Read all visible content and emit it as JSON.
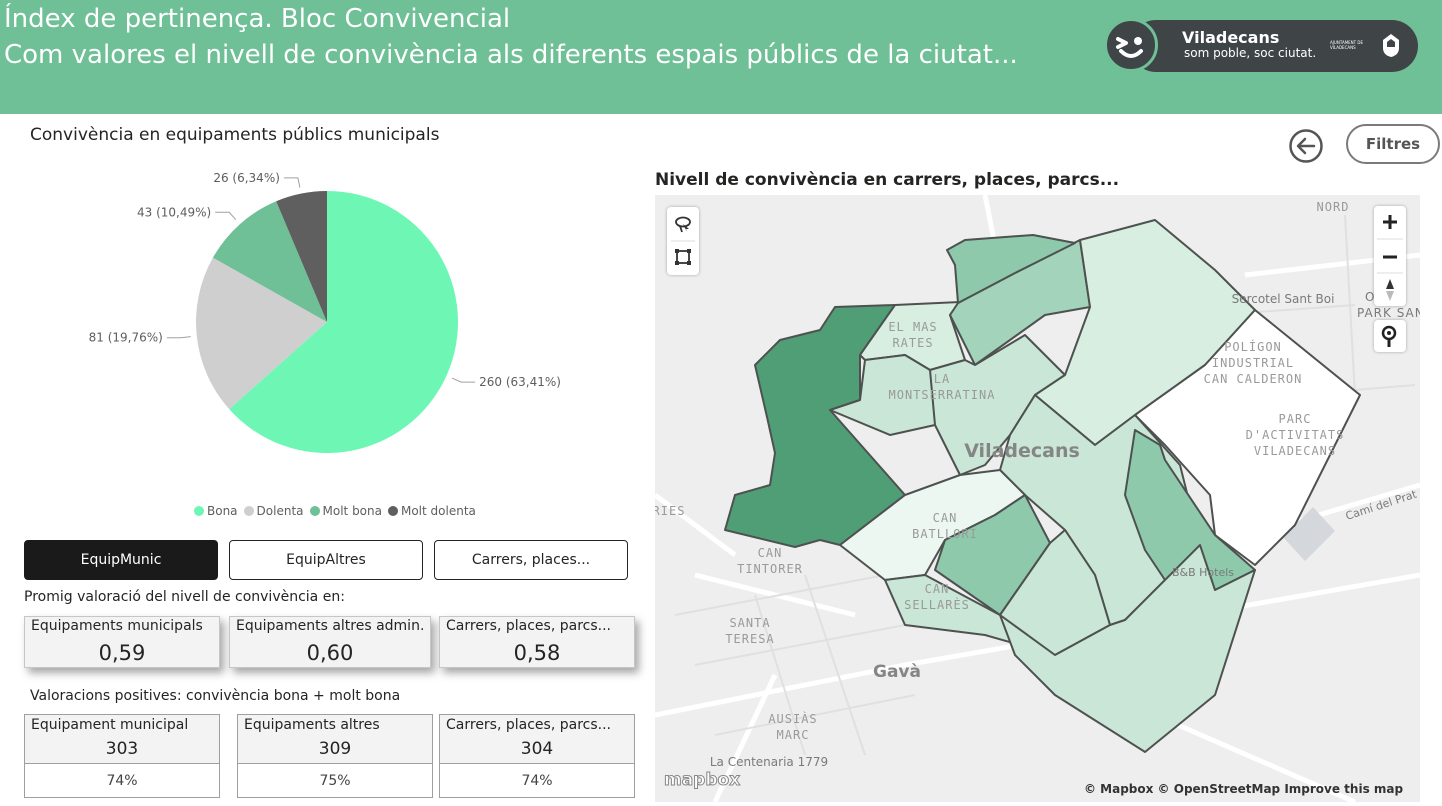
{
  "header": {
    "title": "Índex de pertinença. Bloc Convivencial",
    "subtitle": "Com valores el nivell de convivència als diferents espais públics de la ciutat...",
    "logo_brand": "Viladecans",
    "logo_tagline": "som poble, soc ciutat.",
    "logo_ajuntament": "AJUNTAMENT DE VILADECANS",
    "bg_color": "#6fbf97"
  },
  "pie_section": {
    "title": "Convivència en equipaments públics municipals"
  },
  "chart_data": {
    "type": "pie",
    "series": [
      {
        "name": "Bona",
        "value": 260,
        "label": "260 (63,41%)",
        "color": "#6ef7b4"
      },
      {
        "name": "Dolenta",
        "value": 81,
        "label": "81 (19,76%)",
        "color": "#cfcfcf"
      },
      {
        "name": "Molt bona",
        "value": 43,
        "label": "43 (10,49%)",
        "color": "#6fbf97"
      },
      {
        "name": "Molt dolenta",
        "value": 26,
        "label": "26 (6,34%)",
        "color": "#5f5f5f"
      }
    ],
    "legend_position": "bottom-center"
  },
  "tabs": [
    {
      "label": "EquipMunic",
      "active": true
    },
    {
      "label": "EquipAltres",
      "active": false
    },
    {
      "label": "Carrers, places...",
      "active": false
    }
  ],
  "promig": {
    "heading": "Promig valoració del nivell de convivència en:",
    "cards": [
      {
        "label": "Equipaments municipals",
        "value": "0,59"
      },
      {
        "label": "Equipaments altres admin.",
        "value": "0,60"
      },
      {
        "label": "Carrers, places, parcs...",
        "value": "0,58"
      }
    ]
  },
  "positives": {
    "heading": "Valoracions positives: convivència bona + molt bona",
    "cards": [
      {
        "label": "Equipament municipal",
        "value": "303",
        "pct": "74%"
      },
      {
        "label": "Equipaments altres",
        "value": "309",
        "pct": "75%"
      },
      {
        "label": "Carrers, places, parcs...",
        "value": "304",
        "pct": "74%"
      }
    ]
  },
  "toolbar": {
    "filtres_label": "Filtres",
    "back_icon": "back-arrow-icon"
  },
  "map": {
    "title": "Nivell de convivència en carrers, places, parcs...",
    "labels": {
      "nord": "NORD",
      "sercotel": "Sercotel Sant Boi",
      "park_sant": "PARK SAN",
      "el_mas_rates": [
        "EL MAS",
        "RATES"
      ],
      "la_montserratina": [
        "LA",
        "MONTSERRATINA"
      ],
      "poligon": [
        "POLÍGON",
        "INDUSTRIAL",
        "CAN CALDERON"
      ],
      "parc_activitats": [
        "PARC",
        "D'ACTIVITATS",
        "VILADECANS"
      ],
      "viladecans": "Viladecans",
      "cami_prat": "Camí del Prat",
      "ries": "RIES",
      "can_batllori": [
        "CAN",
        "BATLLORI"
      ],
      "can_tintorer": [
        "CAN",
        "TINTORER"
      ],
      "santa_teresa": [
        "SANTA",
        "TERESA"
      ],
      "can_sellares": [
        "CAN",
        "SELLARÈS"
      ],
      "bb_hotels": "B&B Hotels",
      "gava": "Gavà",
      "ausias_marc": [
        "AUSIÀS",
        "MARC"
      ],
      "la_centenaria": "La Centenaria 1779"
    },
    "attribution": "© Mapbox © OpenStreetMap  Improve this map",
    "mapbox_logo": "mapbox"
  }
}
